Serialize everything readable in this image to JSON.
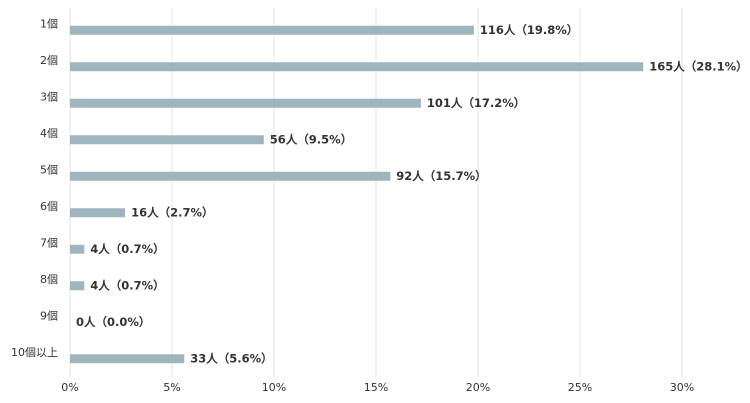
{
  "chart_data": {
    "type": "hbar",
    "categories": [
      "1個",
      "2個",
      "3個",
      "4個",
      "5個",
      "6個",
      "7個",
      "8個",
      "9個",
      "10個以上"
    ],
    "values": [
      19.8,
      28.1,
      17.2,
      9.5,
      15.7,
      2.7,
      0.7,
      0.7,
      0.0,
      5.6
    ],
    "value_labels": [
      "116人（19.8%）",
      "165人（28.1%）",
      "101人（17.2%）",
      "56人（9.5%）",
      "92人（15.7%）",
      "16人（2.7%）",
      "4人（0.7%）",
      "4人（0.7%）",
      "0人（0.0%）",
      "33人（5.6%）"
    ],
    "color": "#9fb5be",
    "xlim": [
      0,
      32
    ],
    "xticks": [
      {
        "value": 0,
        "label": "0%"
      },
      {
        "value": 5,
        "label": "5%"
      },
      {
        "value": 10,
        "label": "10%"
      },
      {
        "value": 15,
        "label": "15%"
      },
      {
        "value": 20,
        "label": "20%"
      },
      {
        "value": 25,
        "label": "25%"
      },
      {
        "value": 30,
        "label": "30%"
      }
    ],
    "grid": true
  }
}
